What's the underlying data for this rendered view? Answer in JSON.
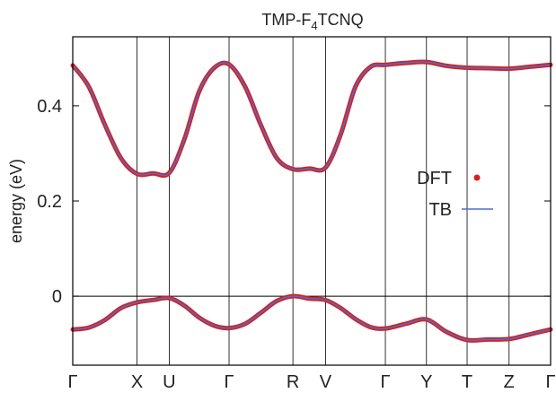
{
  "chart_data": {
    "type": "line",
    "title": "TMP-F",
    "title_subscript": "4",
    "title_suffix": "TCNQ",
    "ylabel": "energy (eV)",
    "xlabel": "",
    "ylim": [
      -0.145,
      0.545
    ],
    "yticks": [
      0,
      0.2,
      0.4
    ],
    "ytick_labels": [
      "0",
      "0.2",
      "0.4"
    ],
    "xlim": [
      0,
      12
    ],
    "kpoints": [
      {
        "label": "Γ",
        "x": 0
      },
      {
        "label": "X",
        "x": 1.44
      },
      {
        "label": "U",
        "x": 2.16
      },
      {
        "label": "Γ",
        "x": 3.5
      },
      {
        "label": "R",
        "x": 4.93
      },
      {
        "label": "V",
        "x": 5.66
      },
      {
        "label": "Γ",
        "x": 7.0
      },
      {
        "label": "Y",
        "x": 7.92
      },
      {
        "label": "T",
        "x": 8.83
      },
      {
        "label": "Z",
        "x": 9.77
      },
      {
        "label": "Γ",
        "x": 10.7
      }
    ],
    "grid": "vertical lines at k-points",
    "zero_line": true,
    "legend_position": "center-right",
    "series": [
      {
        "name": "DFT",
        "marker": "dot",
        "color": "#d62020",
        "bands": [
          [
            [
              0,
              0.485
            ],
            [
              0.36,
              0.44
            ],
            [
              0.72,
              0.36
            ],
            [
              1.08,
              0.29
            ],
            [
              1.44,
              0.257
            ],
            [
              1.8,
              0.258
            ],
            [
              2.16,
              0.259
            ],
            [
              2.5,
              0.33
            ],
            [
              2.83,
              0.43
            ],
            [
              3.17,
              0.48
            ],
            [
              3.5,
              0.487
            ],
            [
              3.86,
              0.44
            ],
            [
              4.21,
              0.36
            ],
            [
              4.57,
              0.29
            ],
            [
              4.93,
              0.267
            ],
            [
              5.3,
              0.268
            ],
            [
              5.66,
              0.27
            ],
            [
              6.0,
              0.34
            ],
            [
              6.33,
              0.44
            ],
            [
              6.67,
              0.482
            ],
            [
              7.0,
              0.486
            ],
            [
              7.46,
              0.49
            ],
            [
              7.92,
              0.492
            ],
            [
              8.37,
              0.484
            ],
            [
              8.83,
              0.48
            ],
            [
              9.3,
              0.479
            ],
            [
              9.77,
              0.478
            ],
            [
              10.24,
              0.482
            ],
            [
              10.7,
              0.486
            ]
          ],
          [
            [
              0,
              -0.07
            ],
            [
              0.36,
              -0.066
            ],
            [
              0.72,
              -0.05
            ],
            [
              1.08,
              -0.025
            ],
            [
              1.44,
              -0.013
            ],
            [
              1.8,
              -0.008
            ],
            [
              2.16,
              -0.004
            ],
            [
              2.5,
              -0.02
            ],
            [
              2.83,
              -0.045
            ],
            [
              3.17,
              -0.062
            ],
            [
              3.5,
              -0.067
            ],
            [
              3.86,
              -0.058
            ],
            [
              4.21,
              -0.035
            ],
            [
              4.57,
              -0.01
            ],
            [
              4.93,
              0.0
            ],
            [
              5.3,
              -0.005
            ],
            [
              5.66,
              -0.008
            ],
            [
              6.0,
              -0.025
            ],
            [
              6.33,
              -0.048
            ],
            [
              6.67,
              -0.065
            ],
            [
              7.0,
              -0.068
            ],
            [
              7.46,
              -0.058
            ],
            [
              7.92,
              -0.049
            ],
            [
              8.37,
              -0.075
            ],
            [
              8.83,
              -0.092
            ],
            [
              9.3,
              -0.091
            ],
            [
              9.77,
              -0.09
            ],
            [
              10.24,
              -0.08
            ],
            [
              10.7,
              -0.07
            ]
          ]
        ]
      },
      {
        "name": "TB",
        "marker": "line",
        "color": "#4a6fd0",
        "bands": "same as DFT"
      }
    ]
  }
}
